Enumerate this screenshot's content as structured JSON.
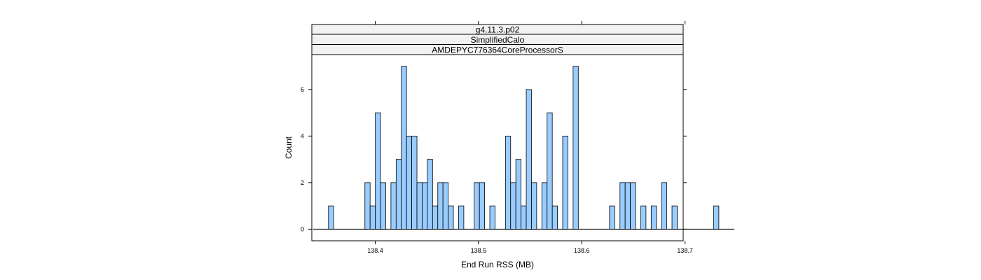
{
  "chart_data": {
    "type": "bar",
    "strips": [
      "g4.11.3.p02",
      "SimplifiedCalo",
      "AMDEPYC776364CoreProcessorS"
    ],
    "xlabel": "End Run RSS (MB)",
    "ylabel": "Count",
    "xlim": [
      138.3386,
      138.6982
    ],
    "ylim": [
      -0.5,
      7.5
    ],
    "xticks": [
      138.4,
      138.5,
      138.6,
      138.7
    ],
    "yticks": [
      0,
      2,
      4,
      6
    ],
    "bin_start": 138.3396,
    "bin_width": 0.00504,
    "counts": [
      0,
      0,
      0,
      1,
      0,
      0,
      0,
      0,
      0,
      0,
      2,
      1,
      5,
      2,
      0,
      2,
      3,
      7,
      4,
      4,
      2,
      2,
      3,
      1,
      2,
      2,
      1,
      0,
      1,
      0,
      0,
      2,
      2,
      0,
      1,
      0,
      0,
      4,
      2,
      3,
      1,
      6,
      2,
      0,
      2,
      5,
      1,
      0,
      4,
      0,
      7,
      0,
      0,
      0,
      0,
      0,
      0,
      1,
      0,
      2,
      2,
      2,
      0,
      1,
      0,
      1,
      0,
      2,
      0,
      1,
      0,
      0,
      0,
      0,
      0,
      0,
      0,
      1,
      0,
      0,
      0
    ],
    "bar_color": "#99ccff",
    "grid": false,
    "legend": "none"
  }
}
